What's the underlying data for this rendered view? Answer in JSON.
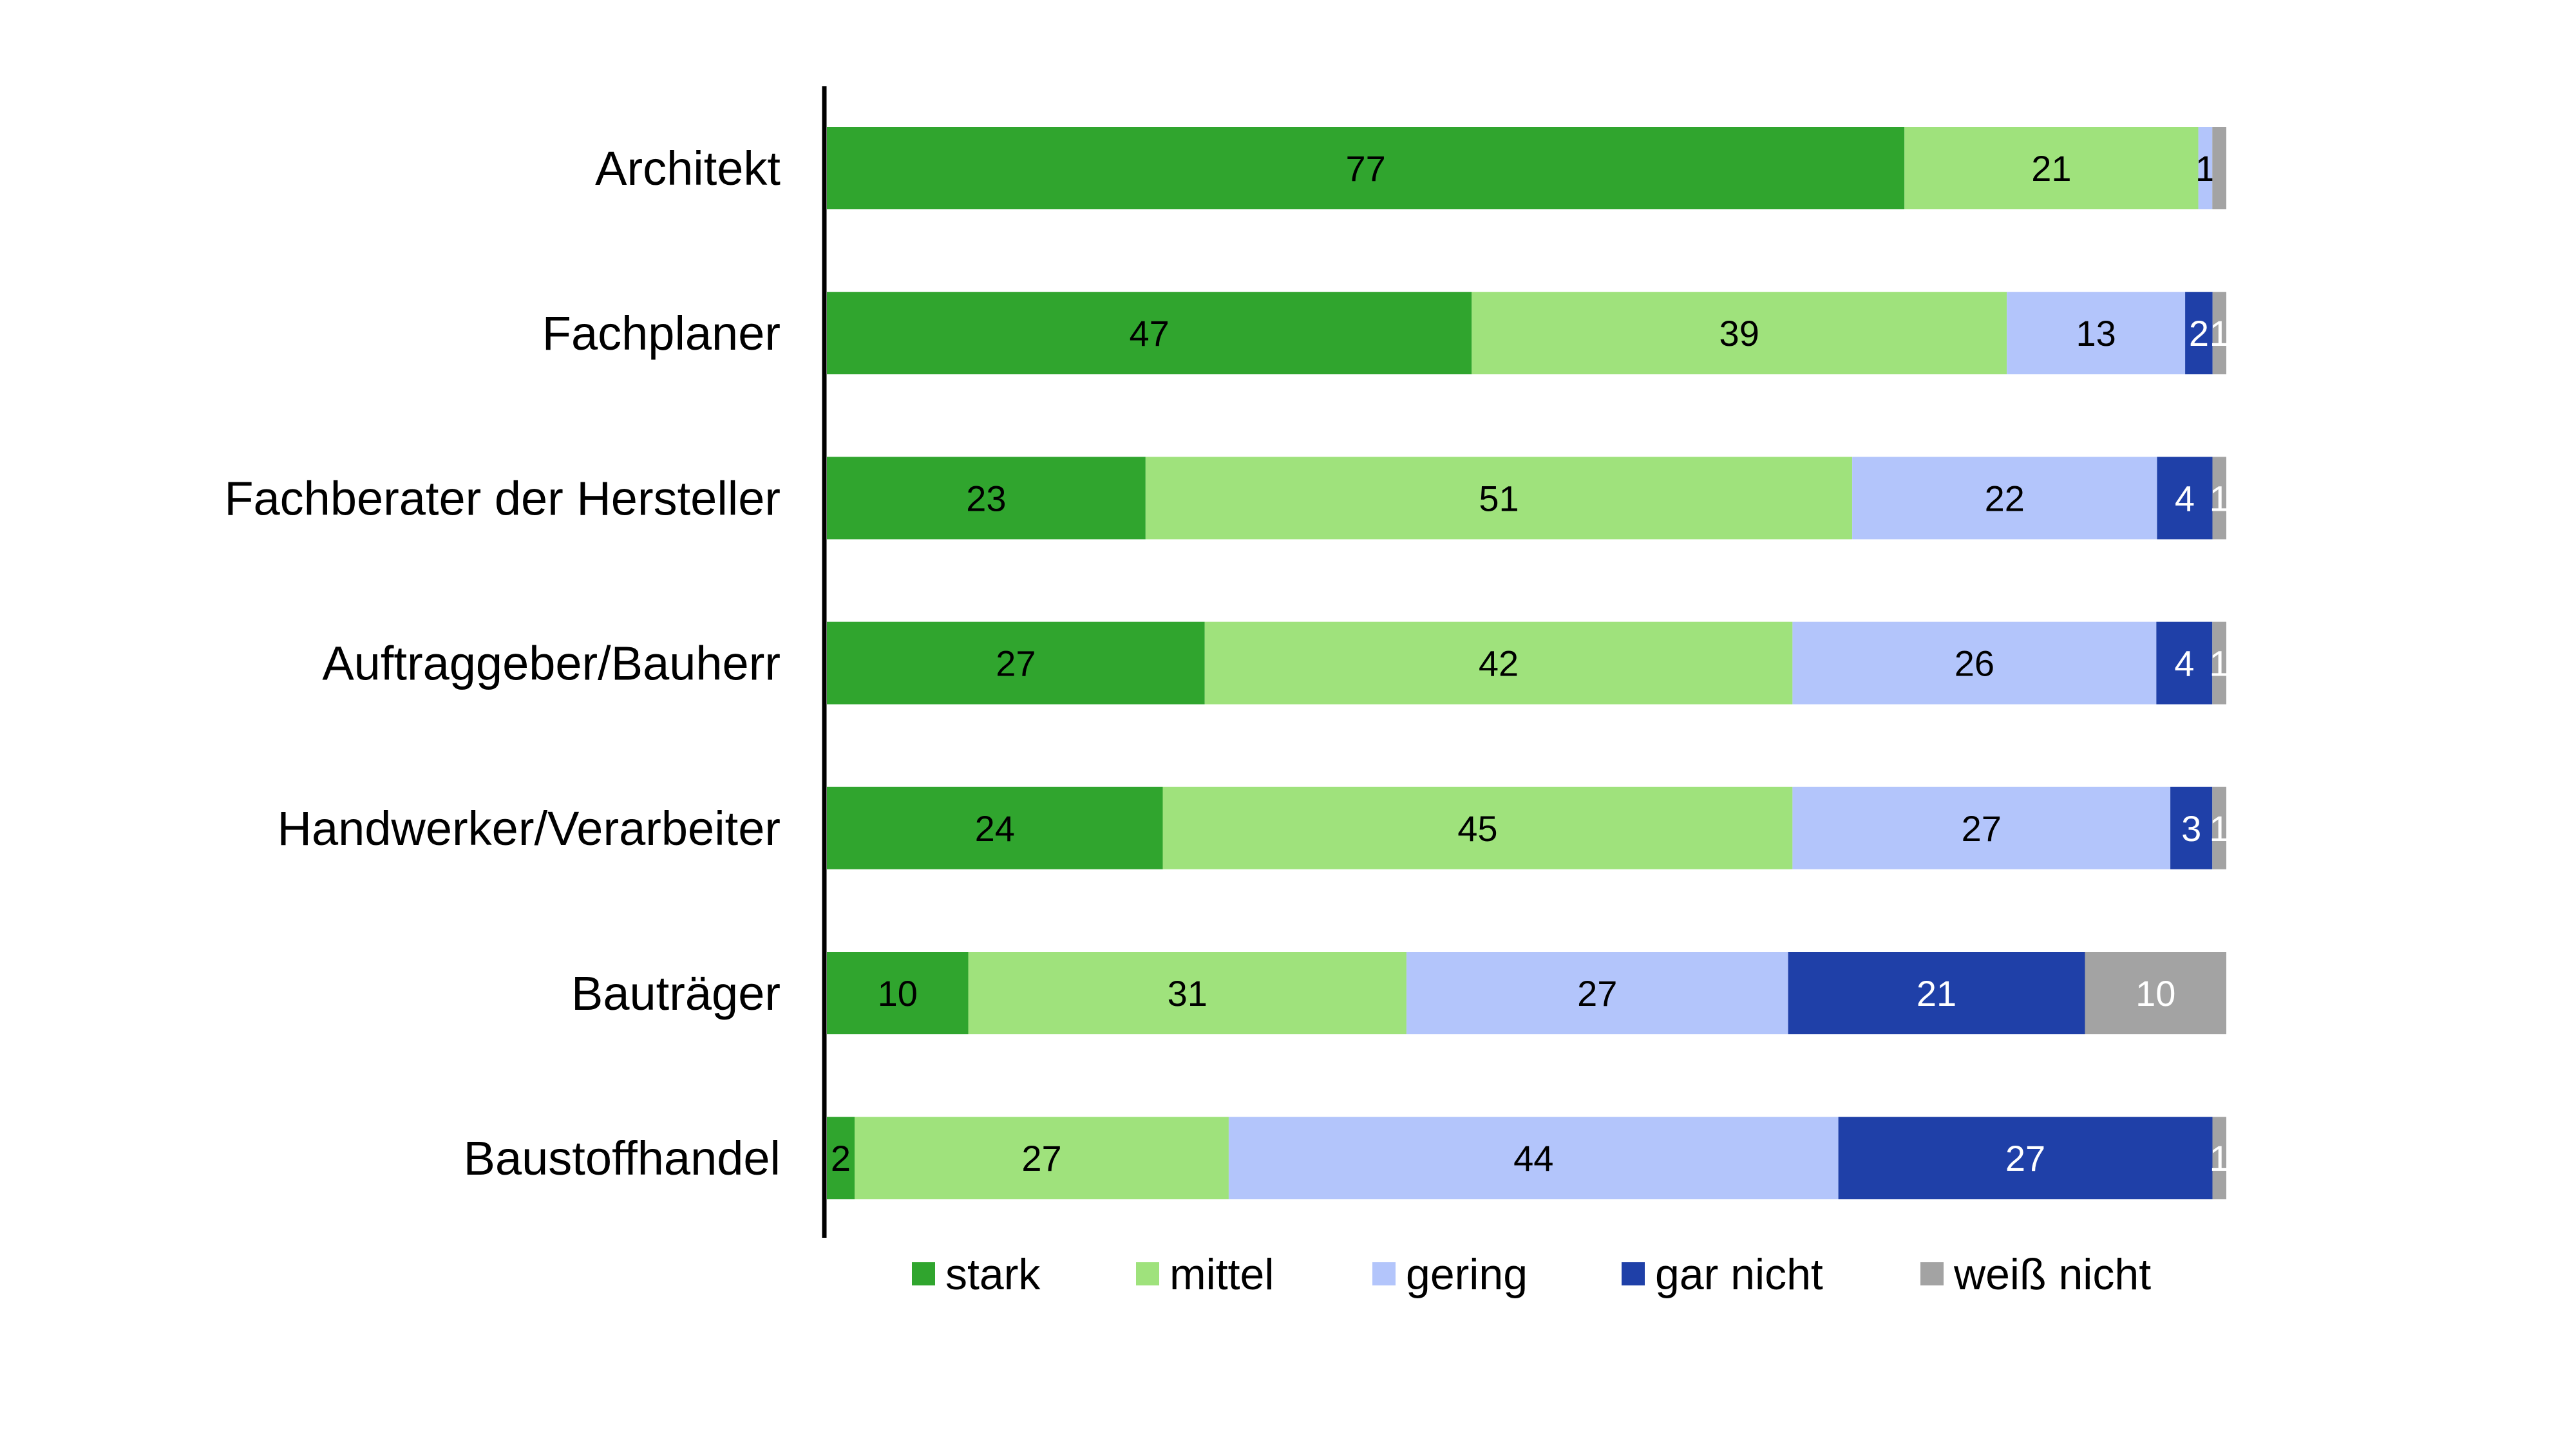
{
  "chart_data": {
    "type": "bar",
    "orientation": "horizontal",
    "stacked": true,
    "categories": [
      "Architekt",
      "Fachplaner",
      "Fachberater der Hersteller",
      "Auftraggeber/Bauherr",
      "Handwerker/Verarbeiter",
      "Bauträger",
      "Baustoffhandel"
    ],
    "series": [
      {
        "name": "stark",
        "color": "#30a52e",
        "label_color": "#000000",
        "values": [
          77,
          47,
          23,
          27,
          24,
          10,
          2
        ],
        "labels": [
          "77",
          "47",
          "23",
          "27",
          "24",
          "10",
          "2"
        ]
      },
      {
        "name": "mittel",
        "color": "#9fe27c",
        "label_color": "#000000",
        "values": [
          21,
          39,
          51,
          42,
          45,
          31,
          27
        ],
        "labels": [
          "21",
          "39",
          "51",
          "42",
          "45",
          "31",
          "27"
        ]
      },
      {
        "name": "gering",
        "color": "#b3c5fb",
        "label_color": "#000000",
        "values": [
          1,
          13,
          22,
          26,
          27,
          27,
          44
        ],
        "labels": [
          "1",
          "13",
          "22",
          "26",
          "27",
          "27",
          "44"
        ]
      },
      {
        "name": "gar nicht",
        "color": "#1f40a8",
        "label_color": "#ffffff",
        "values": [
          0,
          2,
          4,
          4,
          3,
          21,
          27
        ],
        "labels": [
          "",
          "2",
          "4",
          "4",
          "3",
          "21",
          "27"
        ]
      },
      {
        "name": "weiß nicht",
        "color": "#a3a3a3",
        "label_color": "#ffffff",
        "values": [
          1,
          1,
          1,
          1,
          1,
          10,
          1
        ],
        "labels": [
          "",
          "1",
          "1",
          "1",
          "1",
          "10",
          "1"
        ]
      }
    ],
    "legend_position": "bottom",
    "grid": false,
    "xlim": [
      0,
      100
    ]
  }
}
